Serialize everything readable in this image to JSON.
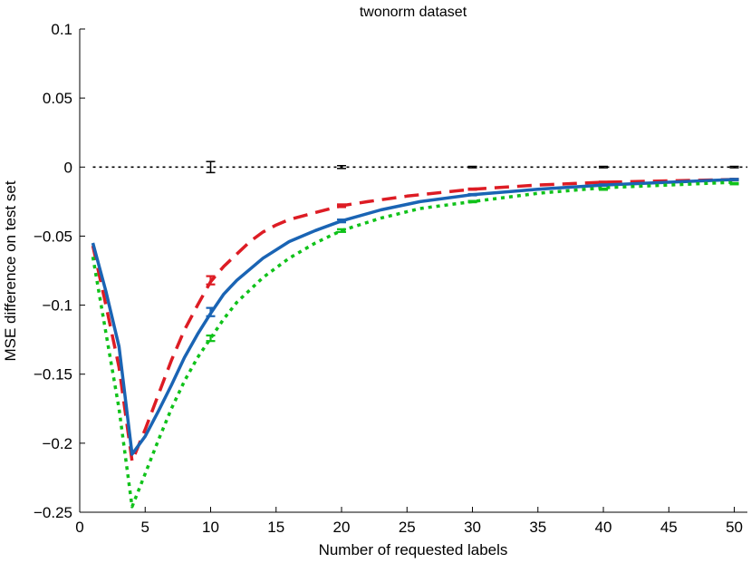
{
  "chart_data": {
    "type": "line",
    "title": "twonorm dataset",
    "xlabel": "Number of requested labels",
    "ylabel": "MSE difference on test set",
    "xlim": [
      0,
      51
    ],
    "ylim": [
      -0.25,
      0.1
    ],
    "xticks": [
      0,
      5,
      10,
      15,
      20,
      25,
      30,
      35,
      40,
      45,
      50
    ],
    "yticks": [
      -0.25,
      -0.2,
      -0.15,
      -0.1,
      -0.05,
      0,
      0.05,
      0.1
    ],
    "ytick_labels": [
      "−0.25",
      "−0.2",
      "−0.15",
      "−0.1",
      "−0.05",
      "0",
      "0.05",
      "0.1"
    ],
    "grid": false,
    "series": [
      {
        "color": "#000000",
        "style": "dotted",
        "x": [
          1,
          51
        ],
        "y": [
          0,
          0
        ],
        "errorbars": [
          {
            "x": 10,
            "y": 0.0,
            "err": 0.004
          },
          {
            "x": 20,
            "y": 0.0,
            "err": 0.001
          },
          {
            "x": 30,
            "y": 0.0,
            "err": 0.0005
          },
          {
            "x": 40,
            "y": 0.0,
            "err": 0.0005
          },
          {
            "x": 50,
            "y": 0.0,
            "err": 0.0005
          }
        ]
      },
      {
        "color": "#dd1c24",
        "style": "dashed",
        "x": [
          1,
          2,
          3,
          4,
          5,
          6,
          7,
          8,
          9,
          10,
          11,
          12,
          13,
          14,
          15,
          16,
          18,
          20,
          22,
          25,
          30,
          35,
          40,
          45,
          50
        ],
        "y": [
          -0.057,
          -0.1,
          -0.145,
          -0.213,
          -0.19,
          -0.165,
          -0.14,
          -0.118,
          -0.1,
          -0.083,
          -0.072,
          -0.063,
          -0.054,
          -0.047,
          -0.042,
          -0.038,
          -0.033,
          -0.028,
          -0.025,
          -0.021,
          -0.016,
          -0.013,
          -0.011,
          -0.01,
          -0.009
        ],
        "errorbars": [
          {
            "x": 10,
            "y": -0.082,
            "err": 0.003
          },
          {
            "x": 20,
            "y": -0.028,
            "err": 0.001
          },
          {
            "x": 30,
            "y": -0.016,
            "err": 0.0005
          },
          {
            "x": 40,
            "y": -0.011,
            "err": 0.0005
          },
          {
            "x": 50,
            "y": -0.009,
            "err": 0.0005
          }
        ]
      },
      {
        "color": "#1a64b4",
        "style": "solid",
        "x": [
          1,
          2,
          3,
          4,
          5,
          6,
          7,
          8,
          9,
          10,
          11,
          12,
          14,
          16,
          18,
          20,
          23,
          26,
          30,
          35,
          40,
          45,
          50
        ],
        "y": [
          -0.055,
          -0.09,
          -0.13,
          -0.208,
          -0.195,
          -0.177,
          -0.158,
          -0.138,
          -0.121,
          -0.106,
          -0.092,
          -0.082,
          -0.066,
          -0.054,
          -0.046,
          -0.039,
          -0.031,
          -0.025,
          -0.02,
          -0.016,
          -0.013,
          -0.011,
          -0.009
        ],
        "errorbars": [
          {
            "x": 10,
            "y": -0.105,
            "err": 0.003
          },
          {
            "x": 20,
            "y": -0.039,
            "err": 0.001
          },
          {
            "x": 30,
            "y": -0.02,
            "err": 0.0005
          },
          {
            "x": 40,
            "y": -0.013,
            "err": 0.0005
          },
          {
            "x": 50,
            "y": -0.009,
            "err": 0.0005
          }
        ]
      },
      {
        "color": "#10c21a",
        "style": "dotted",
        "x": [
          1,
          2,
          3,
          4,
          5,
          6,
          7,
          8,
          9,
          10,
          11,
          12,
          14,
          16,
          18,
          20,
          23,
          26,
          30,
          35,
          40,
          45,
          50
        ],
        "y": [
          -0.065,
          -0.12,
          -0.175,
          -0.246,
          -0.222,
          -0.198,
          -0.175,
          -0.155,
          -0.138,
          -0.124,
          -0.11,
          -0.098,
          -0.08,
          -0.066,
          -0.055,
          -0.046,
          -0.037,
          -0.03,
          -0.025,
          -0.019,
          -0.015,
          -0.013,
          -0.011
        ],
        "errorbars": [
          {
            "x": 10,
            "y": -0.124,
            "err": 0.002
          },
          {
            "x": 20,
            "y": -0.046,
            "err": 0.001
          },
          {
            "x": 30,
            "y": -0.025,
            "err": 0.0005
          },
          {
            "x": 40,
            "y": -0.016,
            "err": 0.0005
          },
          {
            "x": 50,
            "y": -0.012,
            "err": 0.0005
          }
        ]
      }
    ]
  }
}
